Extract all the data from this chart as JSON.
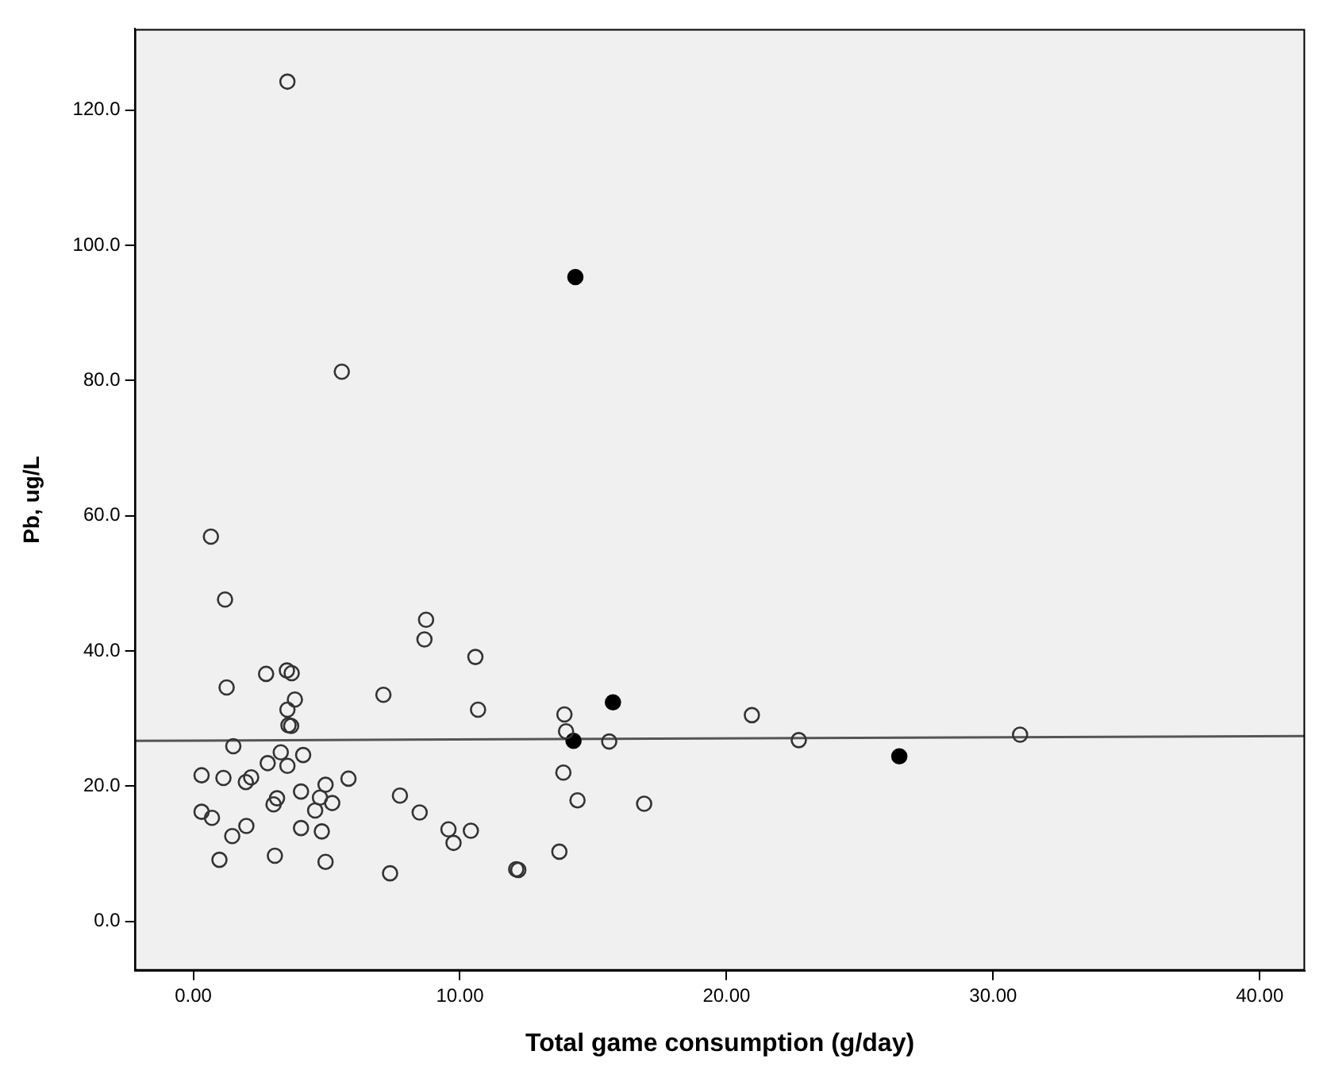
{
  "chart_data": {
    "type": "scatter",
    "xlabel": "Total game consumption (g/day)",
    "ylabel": "Pb, ug/L",
    "xlim": [
      -2.2,
      41.7
    ],
    "ylim": [
      -7.3,
      132
    ],
    "xticks": [
      {
        "value": 0,
        "label": "0.00"
      },
      {
        "value": 10,
        "label": "10.00"
      },
      {
        "value": 20,
        "label": "20.00"
      },
      {
        "value": 30,
        "label": "30.00"
      },
      {
        "value": 40,
        "label": "40.00"
      }
    ],
    "yticks": [
      {
        "value": 0,
        "label": "0.0"
      },
      {
        "value": 20,
        "label": "20.0"
      },
      {
        "value": 40,
        "label": "40.0"
      },
      {
        "value": 60,
        "label": "60.0"
      },
      {
        "value": 80,
        "label": "80.0"
      },
      {
        "value": 100,
        "label": "100.0"
      },
      {
        "value": 120,
        "label": "120.0"
      }
    ],
    "grid": false,
    "legend": false,
    "marker": "circle",
    "series": [
      {
        "color": "#333333",
        "x": [
          0.66,
          1.19,
          1.25,
          2.73,
          3.51,
          3.69,
          3.81,
          3.53,
          3.57,
          3.67,
          1.5,
          3.28,
          4.12,
          2.79,
          3.53,
          0.31,
          1.13,
          2.17,
          1.97,
          5.82,
          4.96,
          4.04,
          3.14,
          4.75,
          3.01,
          5.21,
          4.57,
          0.31,
          0.7,
          1.99,
          4.04,
          4.82,
          1.46,
          0.98,
          3.06,
          4.96,
          7.13,
          7.75,
          8.49,
          7.38,
          8.73,
          8.67,
          10.58,
          10.68,
          9.57,
          9.76,
          10.41,
          12.11,
          12.19,
          13.92,
          13.98,
          13.88,
          14.41,
          13.73,
          15.6,
          16.91,
          20.95,
          22.71,
          31.01,
          3.53,
          5.57
        ],
        "values": [
          56.9,
          47.6,
          34.6,
          36.6,
          37.1,
          36.7,
          32.8,
          31.3,
          29.0,
          28.9,
          25.9,
          25.0,
          24.6,
          23.4,
          23.0,
          21.6,
          21.2,
          21.3,
          20.6,
          21.1,
          20.2,
          19.2,
          18.2,
          18.3,
          17.3,
          17.5,
          16.4,
          16.2,
          15.3,
          14.1,
          13.8,
          13.3,
          12.6,
          9.1,
          9.7,
          8.8,
          33.5,
          18.6,
          16.1,
          7.1,
          44.6,
          41.7,
          39.1,
          31.3,
          13.6,
          11.6,
          13.4,
          7.7,
          7.6,
          30.6,
          28.1,
          22.0,
          17.9,
          10.3,
          26.6,
          17.4,
          30.5,
          26.8,
          27.6,
          124.2,
          81.3
        ]
      },
      {
        "color": "#000000",
        "x": [
          14.26,
          15.74,
          26.48,
          14.33
        ],
        "values": [
          26.7,
          32.4,
          24.4,
          95.3
        ]
      },
      {
        "type": "line",
        "color": "#555555",
        "x": [
          -2.2,
          41.7
        ],
        "values": [
          26.7,
          27.4
        ],
        "marker": "none",
        "line_style": "solid"
      }
    ]
  }
}
